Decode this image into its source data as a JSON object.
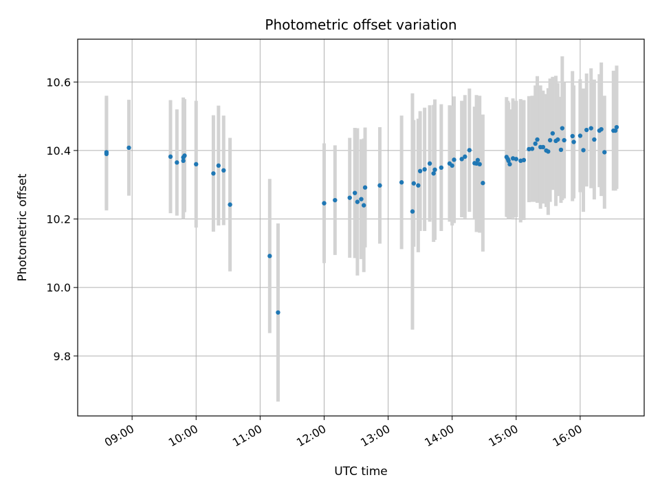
{
  "chart_data": {
    "type": "scatter",
    "title": "Photometric offset variation",
    "xlabel": "UTC time",
    "ylabel": "Photometric offset",
    "x_unit": "hours (UTC)",
    "xlim": [
      8.15,
      17.0
    ],
    "ylim": [
      9.625,
      10.725
    ],
    "x_ticks": [
      9,
      10,
      11,
      12,
      13,
      14,
      15,
      16
    ],
    "x_tick_labels": [
      "09:00",
      "10:00",
      "11:00",
      "12:00",
      "13:00",
      "14:00",
      "15:00",
      "16:00"
    ],
    "y_ticks": [
      9.8,
      10.0,
      10.2,
      10.4,
      10.6
    ],
    "y_tick_labels": [
      "9.8",
      "10.0",
      "10.2",
      "10.4",
      "10.6"
    ],
    "grid": true,
    "colors": {
      "point": "#1f77b4",
      "errorbar": "#d3d3d3",
      "grid": "#b0b0b0"
    },
    "series": [
      {
        "x": [
          8.6,
          8.6,
          8.95,
          9.6,
          9.7,
          9.8,
          9.8,
          9.82,
          10.0,
          10.27,
          10.35,
          10.43,
          10.53,
          11.15,
          11.28,
          12.0,
          12.17,
          12.4,
          12.48,
          12.52,
          12.58,
          12.62,
          12.64,
          12.87,
          13.21,
          13.38,
          13.4,
          13.47,
          13.5,
          13.57,
          13.65,
          13.71,
          13.73,
          13.83,
          13.96,
          14.0,
          14.03,
          14.15,
          14.2,
          14.27,
          14.35,
          14.38,
          14.4,
          14.43,
          14.48,
          14.85,
          14.87,
          14.88,
          14.9,
          14.95,
          15.0,
          15.07,
          15.12,
          15.2,
          15.25,
          15.3,
          15.33,
          15.38,
          15.42,
          15.47,
          15.5,
          15.53,
          15.57,
          15.62,
          15.65,
          15.7,
          15.72,
          15.75,
          15.88,
          15.9,
          16.0,
          16.05,
          16.1,
          16.17,
          16.22,
          16.3,
          16.33,
          16.38,
          16.52,
          16.55,
          16.57
        ],
        "y": [
          10.395,
          10.39,
          10.408,
          10.382,
          10.365,
          10.37,
          10.38,
          10.385,
          10.36,
          10.333,
          10.356,
          10.342,
          10.242,
          10.092,
          9.927,
          10.246,
          10.255,
          10.262,
          10.276,
          10.25,
          10.258,
          10.24,
          10.292,
          10.298,
          10.307,
          10.222,
          10.304,
          10.298,
          10.34,
          10.345,
          10.362,
          10.333,
          10.344,
          10.35,
          10.362,
          10.356,
          10.373,
          10.375,
          10.382,
          10.401,
          10.363,
          10.362,
          10.372,
          10.36,
          10.305,
          10.381,
          10.375,
          10.37,
          10.36,
          10.377,
          10.375,
          10.37,
          10.372,
          10.404,
          10.405,
          10.42,
          10.432,
          10.41,
          10.41,
          10.4,
          10.397,
          10.43,
          10.45,
          10.428,
          10.432,
          10.402,
          10.465,
          10.43,
          10.442,
          10.425,
          10.443,
          10.401,
          10.46,
          10.465,
          10.432,
          10.458,
          10.462,
          10.395,
          10.458,
          10.458,
          10.468
        ],
        "yerr": [
          0.165,
          0.165,
          0.14,
          0.165,
          0.155,
          0.17,
          0.175,
          0.165,
          0.185,
          0.17,
          0.175,
          0.16,
          0.195,
          0.225,
          0.26,
          0.175,
          0.16,
          0.175,
          0.19,
          0.215,
          0.175,
          0.195,
          0.175,
          0.17,
          0.195,
          0.345,
          0.185,
          0.195,
          0.175,
          0.18,
          0.17,
          0.2,
          0.205,
          0.185,
          0.17,
          0.175,
          0.185,
          0.17,
          0.18,
          0.18,
          0.165,
          0.2,
          0.175,
          0.2,
          0.2,
          0.175,
          0.17,
          0.17,
          0.16,
          0.175,
          0.17,
          0.18,
          0.175,
          0.155,
          0.155,
          0.17,
          0.185,
          0.18,
          0.165,
          0.165,
          0.185,
          0.18,
          0.165,
          0.19,
          0.165,
          0.155,
          0.21,
          0.17,
          0.19,
          0.165,
          0.165,
          0.18,
          0.165,
          0.175,
          0.175,
          0.165,
          0.195,
          0.165,
          0.175,
          0.175,
          0.18
        ]
      }
    ]
  }
}
